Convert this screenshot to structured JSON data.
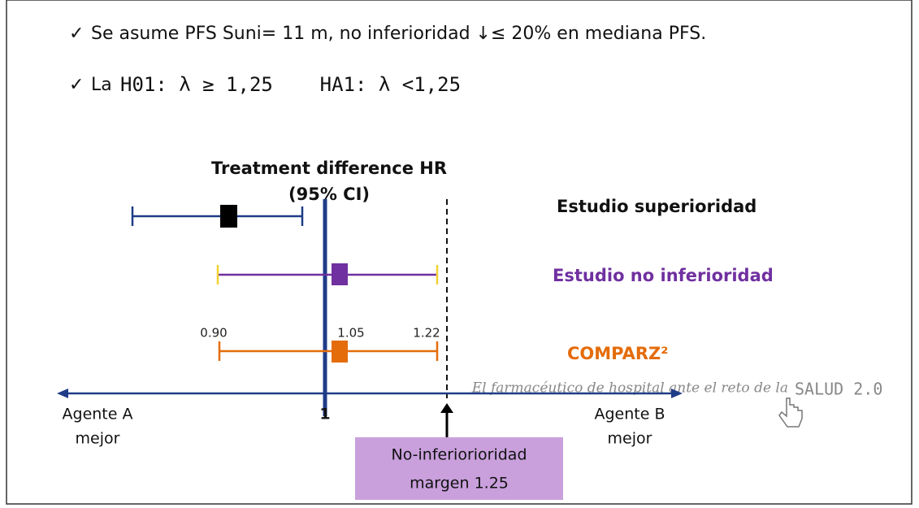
{
  "bullets": [
    "Se asume PFS Suni= 11 m, no inferioridad ↓≤ 20% en mediana PFS.",
    {
      "lead": "La",
      "hypothesis": "H01: λ ≥ 1,25    HA1: λ <1,25"
    }
  ],
  "plot": {
    "title": "Treatment difference HR",
    "subtitle": "(95% CI)",
    "rows": [
      {
        "label": "Estudio superioridad"
      },
      {
        "label": "Estudio no inferioridad"
      },
      {
        "label": "COMPARZ²",
        "lower": "0.90",
        "point": "1.05",
        "upper": "1.22"
      }
    ],
    "axis": {
      "left": [
        "Agente A",
        "mejor"
      ],
      "center": "1",
      "right": [
        "Agente B",
        "mejor"
      ]
    },
    "margin_box": [
      "No-inferiorioridad",
      "margen 1.25"
    ]
  },
  "background": {
    "script": "El farmacéutico de hospital ante el reto de la",
    "brand": "SALUD 2.0"
  }
}
